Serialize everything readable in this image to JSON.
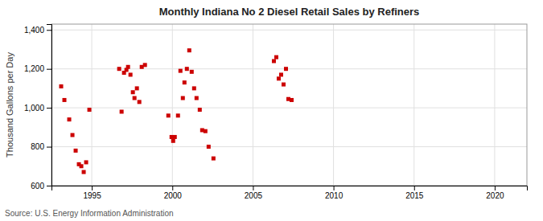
{
  "chart_data": {
    "type": "scatter",
    "title": "Monthly Indiana No 2 Diesel Retail Sales by Refiners",
    "ylabel": "Thousand Gallons per Day",
    "source": "Source: U.S. Energy Information Administration",
    "color": "#cc0000",
    "marker": "square",
    "grid": true,
    "xlim": [
      1992.5,
      2022
    ],
    "ylim": [
      600,
      1430
    ],
    "xticks": [
      1995,
      2000,
      2005,
      2010,
      2015,
      2020
    ],
    "yticks": [
      600,
      800,
      {
        "value": 1000,
        "label": "1,000"
      },
      {
        "value": 1200,
        "label": "1,200"
      },
      {
        "value": 1400,
        "label": "1,400"
      }
    ],
    "x": [
      1993.1,
      1993.3,
      1993.6,
      1993.8,
      1994.0,
      1994.2,
      1994.35,
      1994.5,
      1994.65,
      1994.85,
      1996.7,
      1996.85,
      1997.0,
      1997.15,
      1997.25,
      1997.4,
      1997.55,
      1997.65,
      1997.8,
      1997.95,
      1998.1,
      1998.3,
      1999.75,
      1999.95,
      2000.05,
      2000.15,
      2000.35,
      2000.5,
      2000.65,
      2000.75,
      2000.9,
      2001.05,
      2001.2,
      2001.35,
      2001.5,
      2001.7,
      2001.85,
      2002.05,
      2002.25,
      2002.55,
      2006.3,
      2006.45,
      2006.6,
      2006.75,
      2006.9,
      2007.05,
      2007.2,
      2007.4
    ],
    "values": [
      1110,
      1040,
      940,
      860,
      780,
      710,
      700,
      670,
      720,
      990,
      1200,
      980,
      1180,
      1195,
      1210,
      1170,
      1080,
      1050,
      1100,
      1030,
      1210,
      1220,
      960,
      850,
      830,
      850,
      960,
      1190,
      1050,
      1130,
      1200,
      1295,
      1185,
      1100,
      1050,
      990,
      885,
      880,
      800,
      740,
      1240,
      1260,
      1150,
      1170,
      1120,
      1200,
      1045,
      1040
    ]
  }
}
